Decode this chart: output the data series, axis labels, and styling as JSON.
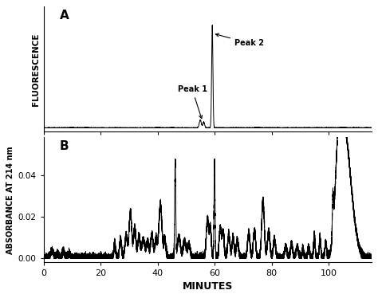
{
  "xlim": [
    0,
    115
  ],
  "xticks": [
    0,
    20,
    40,
    60,
    80,
    100
  ],
  "xlabel": "MINUTES",
  "panel_a_ylabel": "FLUORESCENCE",
  "panel_b_ylabel": "ABSORBANCE AT 214 nm",
  "panel_b_ylim": [
    -0.002,
    0.058
  ],
  "panel_b_yticks": [
    0.0,
    0.02,
    0.04
  ],
  "panel_a_label": "A",
  "panel_b_label": "B",
  "peak1_label": "Peak 1",
  "peak2_label": "Peak 2",
  "line_color": "#000000",
  "background_color": "#ffffff",
  "fig_width": 4.74,
  "fig_height": 3.74,
  "dpi": 100
}
